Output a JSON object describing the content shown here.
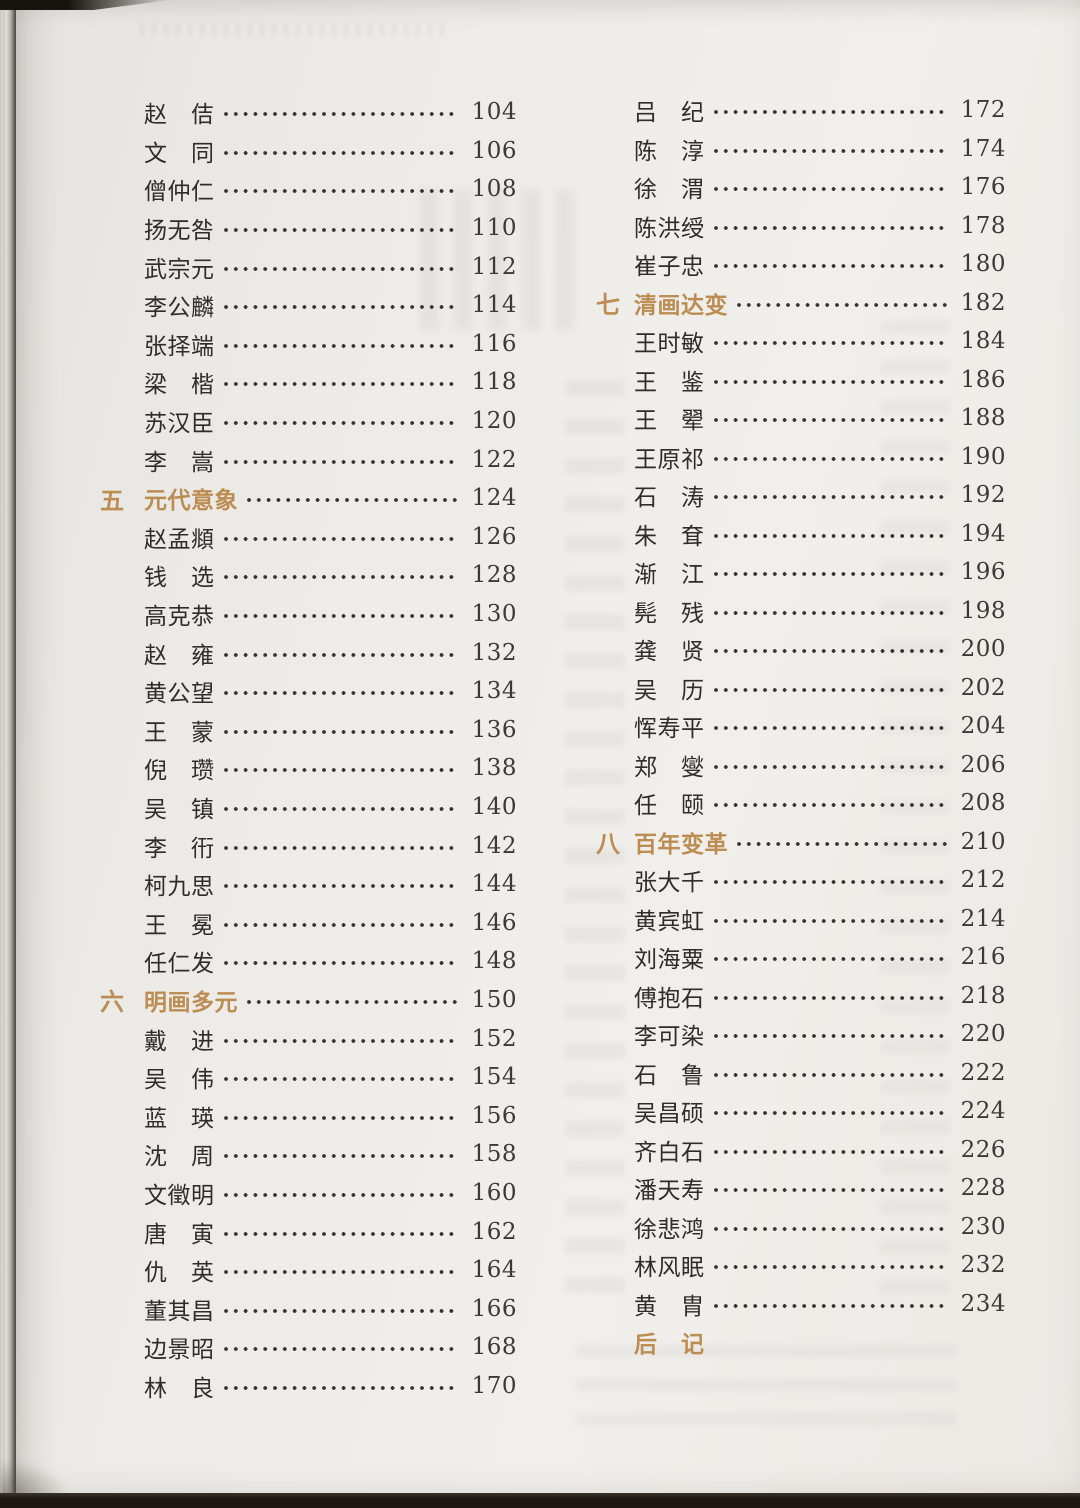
{
  "colors": {
    "section_accent": "#bb8d52",
    "body_text": "#2e2d2b",
    "page_number_text": "#3b3a37",
    "paper": "#eeece8"
  },
  "toc": {
    "left_column": [
      {
        "title": "赵　佶",
        "page": "104"
      },
      {
        "title": "文　同",
        "page": "106"
      },
      {
        "title": "僧仲仁",
        "page": "108"
      },
      {
        "title": "扬无咎",
        "page": "110"
      },
      {
        "title": "武宗元",
        "page": "112"
      },
      {
        "title": "李公麟",
        "page": "114"
      },
      {
        "title": "张择端",
        "page": "116"
      },
      {
        "title": "梁　楷",
        "page": "118"
      },
      {
        "title": "苏汉臣",
        "page": "120"
      },
      {
        "title": "李　嵩",
        "page": "122"
      },
      {
        "section": true,
        "num": "五",
        "title": "元代意象",
        "page": "124"
      },
      {
        "title": "赵孟頫",
        "page": "126"
      },
      {
        "title": "钱　选",
        "page": "128"
      },
      {
        "title": "高克恭",
        "page": "130"
      },
      {
        "title": "赵　雍",
        "page": "132"
      },
      {
        "title": "黄公望",
        "page": "134"
      },
      {
        "title": "王　蒙",
        "page": "136"
      },
      {
        "title": "倪　瓒",
        "page": "138"
      },
      {
        "title": "吴　镇",
        "page": "140"
      },
      {
        "title": "李　衎",
        "page": "142"
      },
      {
        "title": "柯九思",
        "page": "144"
      },
      {
        "title": "王　冕",
        "page": "146"
      },
      {
        "title": "任仁发",
        "page": "148"
      },
      {
        "section": true,
        "num": "六",
        "title": "明画多元",
        "page": "150"
      },
      {
        "title": "戴　进",
        "page": "152"
      },
      {
        "title": "吴　伟",
        "page": "154"
      },
      {
        "title": "蓝　瑛",
        "page": "156"
      },
      {
        "title": "沈　周",
        "page": "158"
      },
      {
        "title": "文徵明",
        "page": "160"
      },
      {
        "title": "唐　寅",
        "page": "162"
      },
      {
        "title": "仇　英",
        "page": "164"
      },
      {
        "title": "董其昌",
        "page": "166"
      },
      {
        "title": "边景昭",
        "page": "168"
      },
      {
        "title": "林　良",
        "page": "170"
      }
    ],
    "right_column": [
      {
        "title": "吕　纪",
        "page": "172"
      },
      {
        "title": "陈　淳",
        "page": "174"
      },
      {
        "title": "徐　渭",
        "page": "176"
      },
      {
        "title": "陈洪绶",
        "page": "178"
      },
      {
        "title": "崔子忠",
        "page": "180"
      },
      {
        "section": true,
        "num": "七",
        "title": "清画达变",
        "page": "182"
      },
      {
        "title": "王时敏",
        "page": "184"
      },
      {
        "title": "王　鉴",
        "page": "186"
      },
      {
        "title": "王　翚",
        "page": "188"
      },
      {
        "title": "王原祁",
        "page": "190"
      },
      {
        "title": "石　涛",
        "page": "192"
      },
      {
        "title": "朱　耷",
        "page": "194"
      },
      {
        "title": "渐　江",
        "page": "196"
      },
      {
        "title": "髡　残",
        "page": "198"
      },
      {
        "title": "龚　贤",
        "page": "200"
      },
      {
        "title": "吴　历",
        "page": "202"
      },
      {
        "title": "恽寿平",
        "page": "204"
      },
      {
        "title": "郑　燮",
        "page": "206"
      },
      {
        "title": "任　颐",
        "page": "208"
      },
      {
        "section": true,
        "num": "八",
        "title": "百年变革",
        "page": "210"
      },
      {
        "title": "张大千",
        "page": "212"
      },
      {
        "title": "黄宾虹",
        "page": "214"
      },
      {
        "title": "刘海粟",
        "page": "216"
      },
      {
        "title": "傅抱石",
        "page": "218"
      },
      {
        "title": "李可染",
        "page": "220"
      },
      {
        "title": "石　鲁",
        "page": "222"
      },
      {
        "title": "吴昌硕",
        "page": "224"
      },
      {
        "title": "齐白石",
        "page": "226"
      },
      {
        "title": "潘天寿",
        "page": "228"
      },
      {
        "title": "徐悲鸿",
        "page": "230"
      },
      {
        "title": "林风眠",
        "page": "232"
      },
      {
        "title": "黄　胄",
        "page": "234"
      },
      {
        "section": true,
        "num": "",
        "title": "后　记",
        "page": "",
        "dots": false
      }
    ]
  }
}
